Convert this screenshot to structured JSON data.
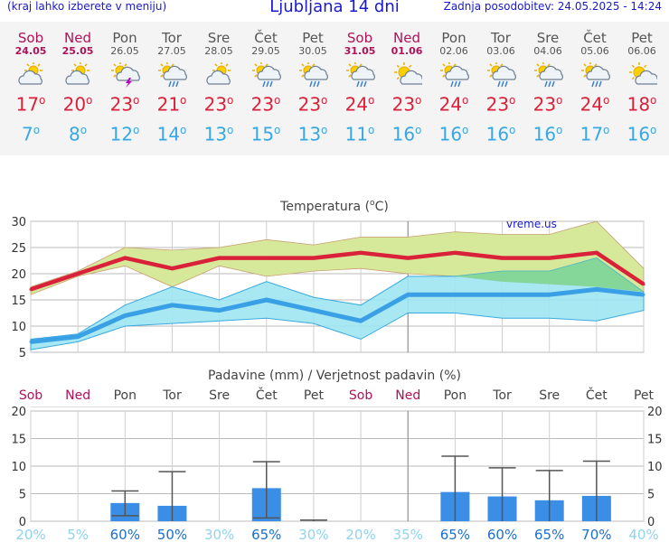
{
  "header": {
    "menu_hint": "(kraj lahko izberete v meniju)",
    "title": "Ljubljana 14 dni",
    "updated": "Zadnja posodobitev: 24.05.2025 - 14:24"
  },
  "days": [
    {
      "name": "Sob",
      "date": "24.05",
      "weekend": true,
      "icon": "partly-cloudy-icon",
      "max": "17",
      "min": "7"
    },
    {
      "name": "Ned",
      "date": "25.05",
      "weekend": true,
      "icon": "partly-cloudy-icon",
      "max": "20",
      "min": "8"
    },
    {
      "name": "Pon",
      "date": "26.05",
      "weekend": false,
      "icon": "thunderstorm-icon",
      "max": "23",
      "min": "12"
    },
    {
      "name": "Tor",
      "date": "27.05",
      "weekend": false,
      "icon": "sun-cloud-rain-icon",
      "max": "21",
      "min": "14"
    },
    {
      "name": "Sre",
      "date": "28.05",
      "weekend": false,
      "icon": "partly-cloudy-icon",
      "max": "23",
      "min": "13"
    },
    {
      "name": "Čet",
      "date": "29.05",
      "weekend": false,
      "icon": "sun-cloud-rain-icon",
      "max": "23",
      "min": "15"
    },
    {
      "name": "Pet",
      "date": "30.05",
      "weekend": false,
      "icon": "sun-cloud-rain-icon",
      "max": "23",
      "min": "13"
    },
    {
      "name": "Sob",
      "date": "31.05",
      "weekend": true,
      "icon": "sun-cloud-rain-icon",
      "max": "24",
      "min": "11"
    },
    {
      "name": "Ned",
      "date": "01.06",
      "weekend": true,
      "icon": "mostly-sunny-icon",
      "max": "23",
      "min": "16"
    },
    {
      "name": "Pon",
      "date": "02.06",
      "weekend": false,
      "icon": "sun-cloud-rain-icon",
      "max": "24",
      "min": "16"
    },
    {
      "name": "Tor",
      "date": "03.06",
      "weekend": false,
      "icon": "sun-cloud-rain-icon",
      "max": "23",
      "min": "16"
    },
    {
      "name": "Sre",
      "date": "04.06",
      "weekend": false,
      "icon": "sun-cloud-rain-icon",
      "max": "23",
      "min": "16"
    },
    {
      "name": "Čet",
      "date": "05.06",
      "weekend": false,
      "icon": "sun-cloud-rain-icon",
      "max": "24",
      "min": "17"
    },
    {
      "name": "Pet",
      "date": "06.06",
      "weekend": false,
      "icon": "mostly-sunny-icon",
      "max": "18",
      "min": "16"
    }
  ],
  "degree_symbol": "o",
  "colors": {
    "title_blue": "#1a1acc",
    "max_red": "#d9213a",
    "min_blue": "#38a7e3",
    "weekend": "#b0125a",
    "max_band": "#d6e89a",
    "min_band": "#9ee6f2",
    "overlap_band": "#7fd48a",
    "bar": "#3a8ee6"
  },
  "chart_data": [
    {
      "type": "line",
      "title": "Temperatura (",
      "title_unit": "C)",
      "title_deg": "o",
      "watermark": "vreme.us",
      "x": [
        "Sob",
        "Ned",
        "Pon",
        "Tor",
        "Sre",
        "Čet",
        "Pet",
        "Sob",
        "Ned",
        "Pon",
        "Tor",
        "Sre",
        "Čet",
        "Pet"
      ],
      "yticks": [
        "30",
        "25",
        "20",
        "15",
        "10",
        "5"
      ],
      "ylim": [
        5,
        30
      ],
      "grid": true,
      "series": [
        {
          "kind": "max",
          "values": [
            17,
            20,
            23,
            21,
            23,
            23,
            23,
            24,
            23,
            24,
            23,
            23,
            24,
            18
          ],
          "high": [
            17.5,
            20.5,
            25,
            24.5,
            25,
            26.5,
            25.5,
            27,
            27,
            28,
            27.5,
            27.5,
            30,
            21
          ],
          "low": [
            16,
            19.5,
            21.5,
            17.5,
            21.5,
            19.5,
            20.5,
            21,
            20,
            19.5,
            18.5,
            18,
            17.5,
            16.5
          ]
        },
        {
          "kind": "min",
          "values": [
            7,
            8,
            12,
            14,
            13,
            15,
            13,
            11,
            16,
            16,
            16,
            16,
            17,
            16
          ],
          "high": [
            7.5,
            8.5,
            14,
            17.5,
            15,
            18.5,
            15.5,
            14,
            19.5,
            19.5,
            20.5,
            20.5,
            23,
            16.5
          ],
          "low": [
            5.5,
            7,
            10,
            10.5,
            11,
            11.5,
            10.5,
            7.5,
            12.5,
            12.5,
            11.5,
            11.5,
            11,
            13
          ]
        }
      ]
    },
    {
      "type": "bar",
      "title": "Padavine (mm) / Verjetnost padavin (%)",
      "categories": [
        "Sob",
        "Ned",
        "Pon",
        "Tor",
        "Sre",
        "Čet",
        "Pet",
        "Sob",
        "Ned",
        "Pon",
        "Tor",
        "Sre",
        "Čet",
        "Pet"
      ],
      "weekend": [
        true,
        true,
        false,
        false,
        false,
        false,
        false,
        true,
        true,
        false,
        false,
        false,
        false,
        false
      ],
      "yticks": [
        "20",
        "15",
        "10",
        "5",
        "0"
      ],
      "ylim": [
        0,
        20
      ],
      "values": [
        0,
        0,
        3.3,
        2.8,
        0,
        6.0,
        0,
        0,
        0,
        5.3,
        4.5,
        3.8,
        4.6,
        0
      ],
      "err_high": [
        0,
        0,
        5.5,
        9.0,
        0,
        10.8,
        0.2,
        0,
        0,
        11.8,
        9.7,
        9.2,
        10.9,
        0
      ],
      "err_low": [
        0,
        0,
        1.0,
        0,
        0,
        0.6,
        0,
        0,
        0,
        0,
        0,
        0,
        0,
        0
      ],
      "has_bar": [
        false,
        false,
        true,
        true,
        false,
        true,
        true,
        false,
        false,
        true,
        true,
        true,
        true,
        false
      ],
      "probability": [
        "20%",
        "5%",
        "60%",
        "50%",
        "30%",
        "65%",
        "30%",
        "20%",
        "35%",
        "65%",
        "60%",
        "65%",
        "70%",
        "40%"
      ],
      "prob_strong": [
        false,
        false,
        true,
        true,
        false,
        true,
        false,
        false,
        false,
        true,
        true,
        true,
        true,
        false
      ]
    }
  ]
}
